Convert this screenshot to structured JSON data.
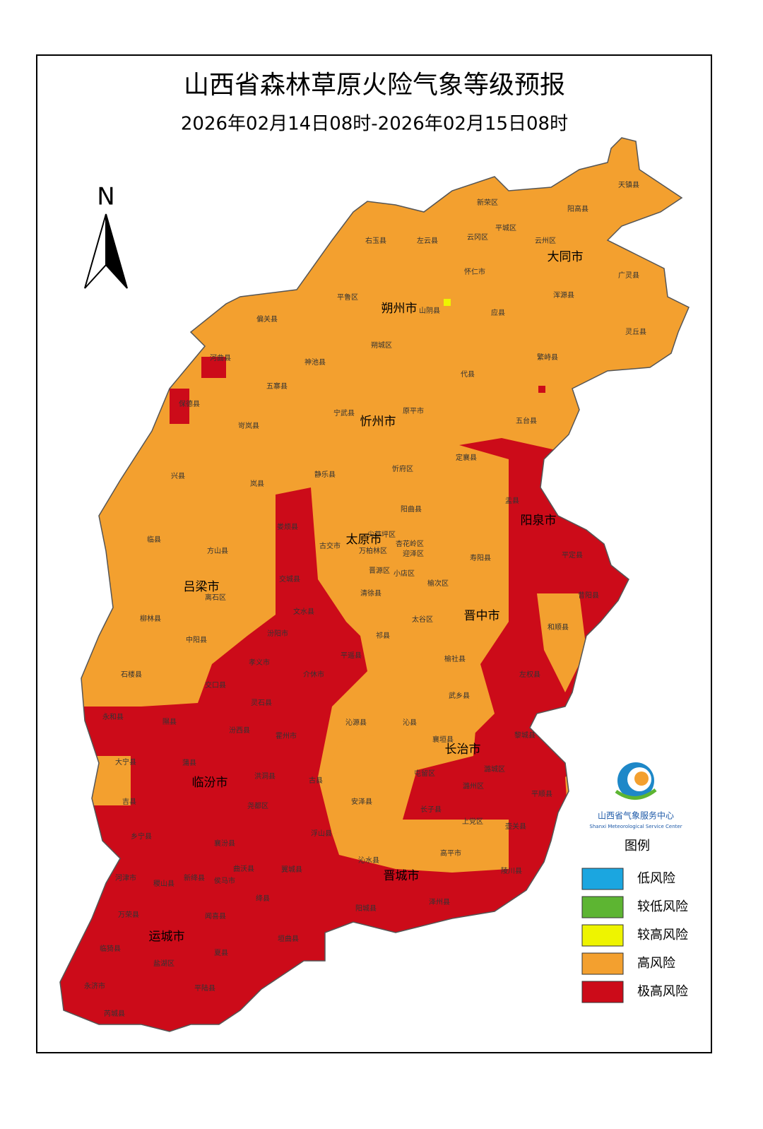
{
  "header": {
    "title": "山西省森林草原火险气象等级预报",
    "subtitle": "2026年02月14日08时-2026年02月15日08时"
  },
  "north": "N",
  "cities": [
    "大同市",
    "朔州市",
    "忻州市",
    "阳泉市",
    "太原市",
    "吕梁市",
    "晋中市",
    "长治市",
    "临汾市",
    "晋城市",
    "运城市"
  ],
  "counties": [
    "天镇县",
    "新荣区",
    "阳高县",
    "右玉县",
    "左云县",
    "云冈区",
    "平城区",
    "云州区",
    "怀仁市",
    "广灵县",
    "浑源县",
    "平鲁区",
    "山阴县",
    "应县",
    "灵丘县",
    "偏关县",
    "河曲县",
    "朔城区",
    "神池县",
    "代县",
    "繁峙县",
    "保德县",
    "五寨县",
    "宁武县",
    "原平市",
    "五台县",
    "岢岚县",
    "静乐县",
    "忻府区",
    "定襄县",
    "兴县",
    "岚县",
    "阳曲县",
    "盂县",
    "临县",
    "方山县",
    "娄烦县",
    "古交市",
    "尖草坪区",
    "万柏林区",
    "杏花岭区",
    "迎泽区",
    "寿阳县",
    "平定县",
    "晋源区",
    "小店区",
    "离石区",
    "交城县",
    "清徐县",
    "榆次区",
    "昔阳县",
    "柳林县",
    "中阳县",
    "文水县",
    "太谷区",
    "和顺县",
    "汾阳市",
    "祁县",
    "孝义市",
    "平遥县",
    "榆社县",
    "左权县",
    "石楼县",
    "介休市",
    "交口县",
    "武乡县",
    "灵石县",
    "永和县",
    "隰县",
    "汾西县",
    "霍州市",
    "沁源县",
    "沁县",
    "黎城县",
    "襄垣县",
    "大宁县",
    "蒲县",
    "洪洞县",
    "潞城区",
    "屯留区",
    "古县",
    "潞州区",
    "平顺县",
    "吉县",
    "尧都区",
    "安泽县",
    "长子县",
    "上党区",
    "壶关县",
    "乡宁县",
    "襄汾县",
    "浮山县",
    "高平市",
    "沁水县",
    "陵川县",
    "河津市",
    "稷山县",
    "新绛县",
    "曲沃县",
    "侯马市",
    "翼城县",
    "绛县",
    "泽州县",
    "万荣县",
    "闻喜县",
    "阳城县",
    "临猗县",
    "夏县",
    "垣曲县",
    "盐湖区",
    "永济市",
    "平陆县",
    "芮城县"
  ],
  "logo": {
    "name": "山西省气象服务中心",
    "english": "Shanxi Meteorological Service Center"
  },
  "legend": {
    "title": "图例",
    "items": [
      {
        "label": "低风险",
        "color": "#1ba6e0"
      },
      {
        "label": "较低风险",
        "color": "#5db532"
      },
      {
        "label": "较高风险",
        "color": "#eef400"
      },
      {
        "label": "高风险",
        "color": "#f3a02f"
      },
      {
        "label": "极高风险",
        "color": "#cc0b19"
      }
    ]
  }
}
